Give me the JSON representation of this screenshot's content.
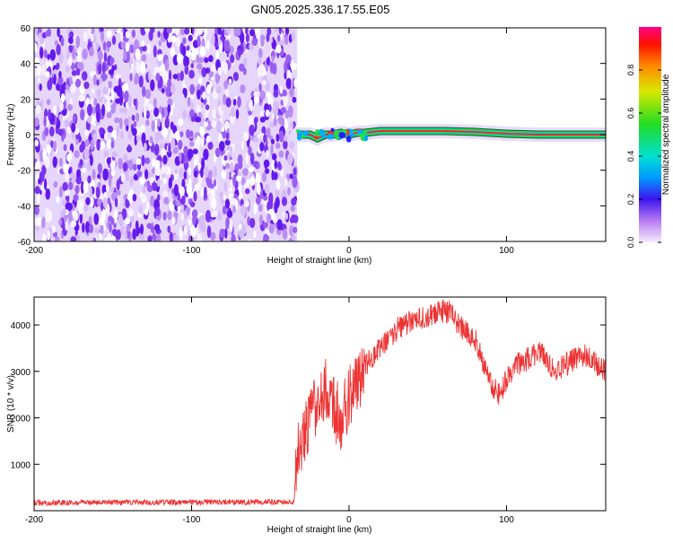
{
  "title": "GN05.2025.336.17.55.E05",
  "chart_data": [
    {
      "type": "heatmap",
      "xlabel": "Height of straight line (km)",
      "ylabel": "Frequency (Hz)",
      "xlim": [
        -200,
        163
      ],
      "ylim": [
        -60,
        60
      ],
      "xticks": [
        -200,
        -100,
        0,
        100
      ],
      "yticks": [
        -60,
        -40,
        -20,
        0,
        20,
        40,
        60
      ],
      "noise_region_x": [
        -200,
        -33
      ],
      "signal_line": {
        "x_start": -33,
        "x_end": 163,
        "points": [
          [
            -33,
            0
          ],
          [
            -25,
            0
          ],
          [
            -20,
            -2
          ],
          [
            -15,
            0
          ],
          [
            -10,
            0
          ],
          [
            -5,
            1
          ],
          [
            0,
            0
          ],
          [
            5,
            1
          ],
          [
            10,
            1
          ],
          [
            20,
            2
          ],
          [
            40,
            2
          ],
          [
            60,
            2
          ],
          [
            80,
            1.5
          ],
          [
            100,
            0.5
          ],
          [
            120,
            0
          ],
          [
            140,
            0
          ],
          [
            163,
            0
          ]
        ]
      },
      "colorbar": {
        "label": "Normalized spectral amplitude",
        "range": [
          0,
          1
        ],
        "ticks": [
          "0.0",
          "0.2",
          "0.4",
          "0.6",
          "0.8"
        ]
      }
    },
    {
      "type": "line",
      "xlabel": "Height of straight line (km)",
      "ylabel": "SNR (10 * v/v)",
      "xlim": [
        -200,
        163
      ],
      "ylim": [
        0,
        4600
      ],
      "xticks": [
        -200,
        -100,
        0,
        100
      ],
      "yticks": [
        1000,
        2000,
        3000,
        4000
      ],
      "series": [
        {
          "name": "SNR",
          "color": "#ee3333",
          "x": [
            -200,
            -35,
            -33,
            -25,
            -20,
            -15,
            -10,
            -5,
            0,
            5,
            10,
            20,
            30,
            40,
            50,
            60,
            65,
            70,
            80,
            85,
            90,
            95,
            100,
            105,
            110,
            120,
            125,
            130,
            140,
            150,
            163
          ],
          "y": [
            170,
            190,
            1250,
            1900,
            2400,
            2600,
            2200,
            2000,
            2400,
            2800,
            3100,
            3500,
            3900,
            4100,
            4200,
            4300,
            4250,
            4000,
            3700,
            3200,
            2700,
            2500,
            2800,
            3100,
            3200,
            3400,
            3300,
            3000,
            3200,
            3350,
            3000
          ]
        }
      ]
    }
  ]
}
